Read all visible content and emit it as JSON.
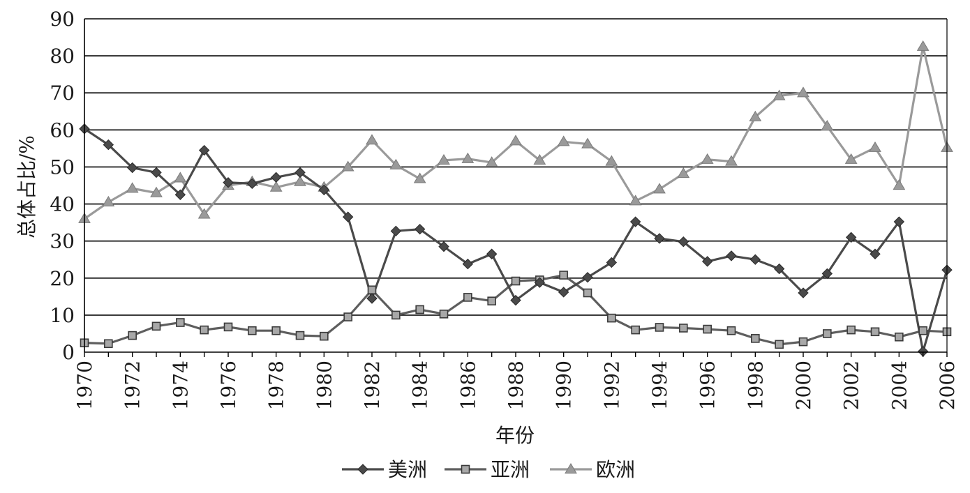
{
  "chart_data": {
    "type": "line",
    "title": "",
    "xlabel": "年份",
    "ylabel": "总体占比/%",
    "ylim": [
      0,
      90
    ],
    "yticks": [
      0,
      10,
      20,
      30,
      40,
      50,
      60,
      70,
      80,
      90
    ],
    "xticks": [
      1970,
      1972,
      1974,
      1976,
      1978,
      1980,
      1982,
      1984,
      1986,
      1988,
      1990,
      1992,
      1994,
      1996,
      1998,
      2000,
      2002,
      2004,
      2006
    ],
    "grid": "horizontal",
    "legend_position": "bottom",
    "x": [
      1970,
      1971,
      1972,
      1973,
      1974,
      1975,
      1976,
      1977,
      1978,
      1979,
      1980,
      1981,
      1982,
      1983,
      1984,
      1985,
      1986,
      1987,
      1988,
      1989,
      1990,
      1991,
      1992,
      1993,
      1994,
      1995,
      1996,
      1997,
      1998,
      1999,
      2000,
      2001,
      2002,
      2003,
      2004,
      2005,
      2006
    ],
    "series": [
      {
        "name": "美洲",
        "marker": "diamond",
        "color": "#4a4a4a",
        "values": [
          60.3,
          56,
          49.8,
          48.5,
          42.5,
          54.5,
          45.8,
          45.5,
          47.2,
          48.5,
          43.8,
          36.5,
          14.5,
          32.7,
          33.2,
          28.5,
          23.8,
          26.5,
          14,
          18.8,
          16.2,
          20.2,
          24.2,
          35.2,
          30.7,
          29.8,
          24.5,
          26,
          25,
          22.5,
          16,
          21.2,
          31,
          26.5,
          35.2,
          0.2,
          22.2
        ]
      },
      {
        "name": "亚洲",
        "marker": "square",
        "color": "#5e5e5e",
        "values": [
          2.5,
          2.3,
          4.5,
          7,
          8,
          6,
          6.8,
          5.8,
          5.8,
          4.5,
          4.3,
          9.5,
          16.8,
          10,
          11.5,
          10.3,
          14.8,
          13.8,
          19.2,
          19.5,
          20.8,
          16,
          9.2,
          6,
          6.7,
          6.5,
          6.2,
          5.8,
          3.7,
          2.1,
          2.8,
          5,
          6,
          5.5,
          4.1,
          5.8,
          5.5
        ]
      },
      {
        "name": "欧洲",
        "marker": "triangle",
        "color": "#9a9a9a",
        "values": [
          36,
          40.5,
          44.2,
          43,
          47,
          37.2,
          45,
          46,
          44.5,
          46,
          44.5,
          50,
          57.2,
          50.5,
          46.8,
          51.8,
          52.2,
          51.2,
          57,
          51.8,
          56.8,
          56.2,
          51.5,
          40.8,
          44,
          48.2,
          52,
          51.5,
          63.5,
          69.2,
          70,
          61,
          52,
          55.2,
          45,
          82.5,
          55.2
        ]
      }
    ]
  }
}
